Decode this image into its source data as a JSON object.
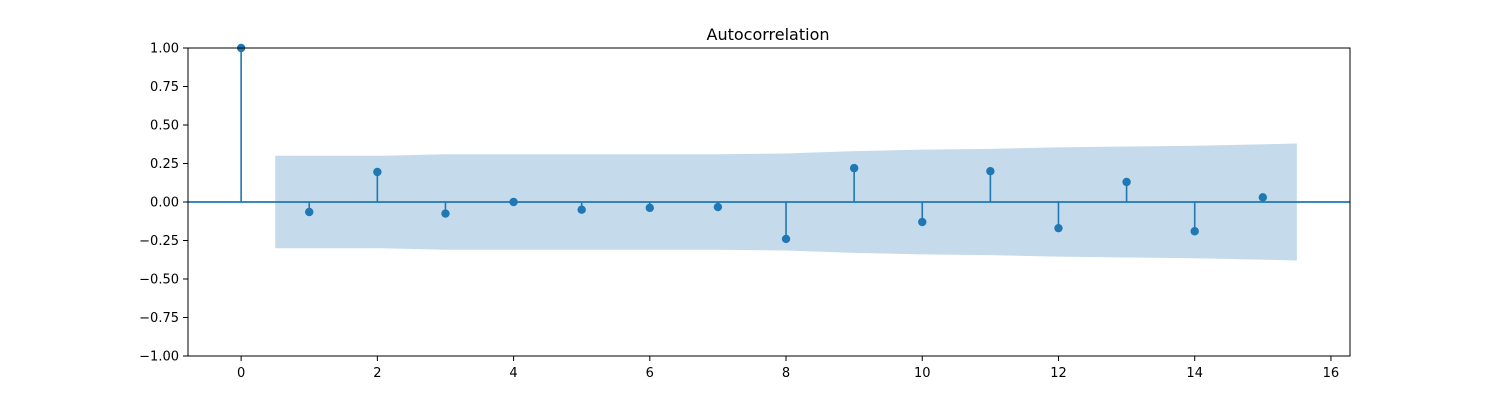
{
  "chart_data": {
    "type": "stem",
    "title": "Autocorrelation",
    "xlabel": "",
    "ylabel": "",
    "xlim": [
      -0.78,
      16.28
    ],
    "ylim": [
      -1.0,
      1.0
    ],
    "x_ticks": [
      0,
      2,
      4,
      6,
      8,
      10,
      12,
      14,
      16
    ],
    "y_ticks": [
      -1.0,
      -0.75,
      -0.5,
      -0.25,
      0.0,
      0.25,
      0.5,
      0.75,
      1.0
    ],
    "y_tick_labels": [
      "−1.00",
      "−0.75",
      "−0.50",
      "−0.25",
      "0.00",
      "0.25",
      "0.50",
      "0.75",
      "1.00"
    ],
    "x_tick_labels": [
      "0",
      "2",
      "4",
      "6",
      "8",
      "10",
      "12",
      "14",
      "16"
    ],
    "grid": false,
    "legend": "none",
    "series": [
      {
        "lags": [
          0,
          1,
          2,
          3,
          4,
          5,
          6,
          7,
          8,
          9,
          10,
          11,
          12,
          13,
          14,
          15
        ],
        "values": [
          1.0,
          -0.065,
          0.195,
          -0.075,
          0.0,
          -0.05,
          -0.038,
          -0.033,
          -0.24,
          0.22,
          -0.13,
          0.2,
          -0.17,
          0.13,
          -0.19,
          0.03
        ]
      }
    ],
    "confidence_band": {
      "x_start": 0.5,
      "x_end": 15.5,
      "knots_x": [
        0.5,
        2.0,
        3.0,
        7.0,
        8.0,
        9.0,
        10.0,
        11.0,
        12.0,
        13.0,
        14.0,
        15.5
      ],
      "knots_upper": [
        0.3,
        0.3,
        0.31,
        0.31,
        0.315,
        0.33,
        0.34,
        0.345,
        0.355,
        0.36,
        0.365,
        0.38
      ]
    },
    "colors": {
      "stem": "#1f77b4",
      "band": "#c5dbec",
      "baseline": "#1f77b4",
      "axes": "#000000"
    }
  }
}
